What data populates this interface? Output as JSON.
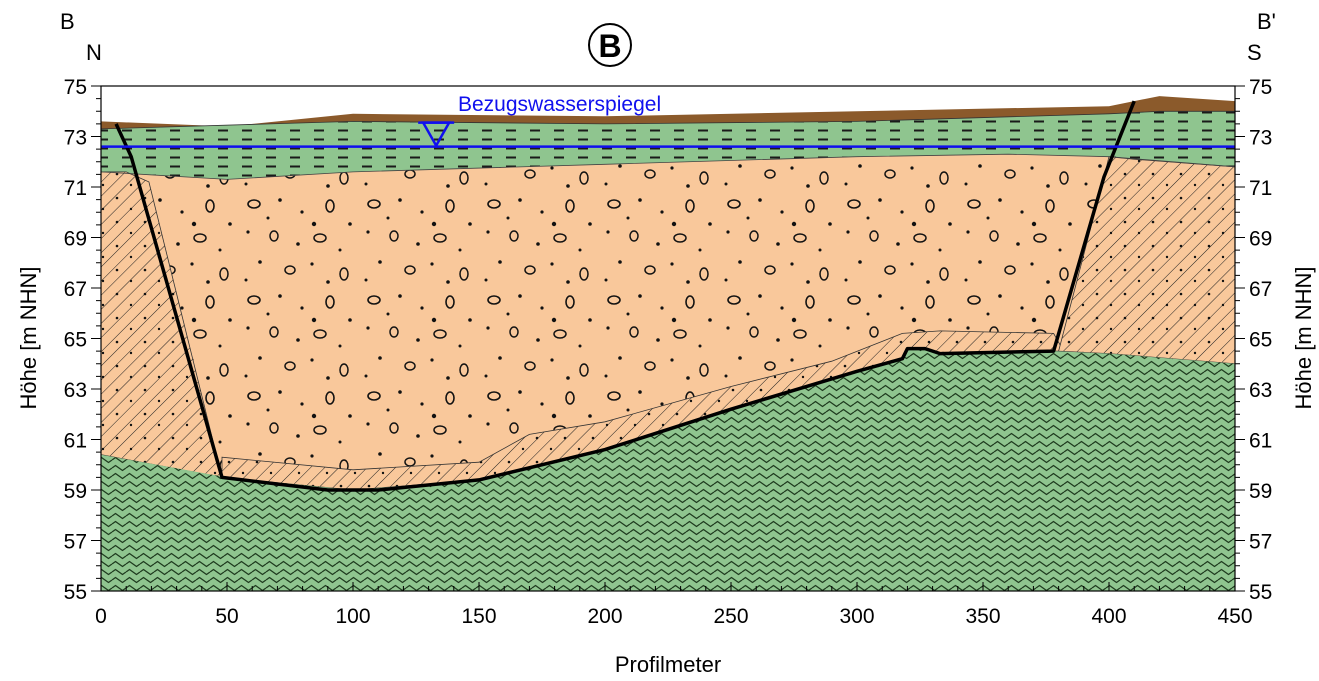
{
  "section_label": "B",
  "corners": {
    "left_top": "B",
    "left_bottom": "N",
    "right_top": "B'",
    "right_bottom": "S"
  },
  "water_level_label": "Bezugswasserspiegel",
  "water_level_m": 72.6,
  "axes": {
    "xlabel": "Profilmeter",
    "ylabel_left": "Höhe [m NHN]",
    "ylabel_right": "Höhe [m NHN]",
    "xlim": [
      0,
      450
    ],
    "ylim": [
      55,
      75
    ],
    "xticks": [
      "0",
      "50",
      "100",
      "150",
      "200",
      "250",
      "300",
      "350",
      "400",
      "450"
    ],
    "yticks": [
      "55",
      "57",
      "59",
      "61",
      "63",
      "65",
      "67",
      "69",
      "71",
      "73",
      "75"
    ]
  },
  "colors": {
    "topsoil": "#8b5a2b",
    "upper_layer": "#8fc58f",
    "gravel": "#f9c89b",
    "bedrock": "#8fc58f",
    "water": "#1010ee"
  },
  "layers": [
    {
      "name": "topsoil",
      "top": [
        [
          0,
          73.6
        ],
        [
          50,
          73.4
        ],
        [
          100,
          73.9
        ],
        [
          200,
          73.8
        ],
        [
          300,
          74.0
        ],
        [
          400,
          74.2
        ],
        [
          420,
          74.6
        ],
        [
          450,
          74.4
        ]
      ]
    },
    {
      "name": "upper_layer",
      "top": [
        [
          0,
          73.3
        ],
        [
          100,
          73.6
        ],
        [
          200,
          73.5
        ],
        [
          300,
          73.6
        ],
        [
          400,
          73.9
        ],
        [
          420,
          74.0
        ],
        [
          450,
          74.0
        ]
      ]
    },
    {
      "name": "gravel",
      "top": [
        [
          0,
          71.6
        ],
        [
          50,
          71.3
        ],
        [
          100,
          71.6
        ],
        [
          200,
          71.9
        ],
        [
          300,
          72.2
        ],
        [
          360,
          72.3
        ],
        [
          400,
          72.2
        ],
        [
          450,
          71.8
        ]
      ]
    },
    {
      "name": "bedrock",
      "top": [
        [
          0,
          60.4
        ],
        [
          50,
          59.5
        ],
        [
          100,
          59.0
        ],
        [
          150,
          59.4
        ],
        [
          200,
          60.6
        ],
        [
          250,
          62.2
        ],
        [
          300,
          63.7
        ],
        [
          318,
          64.2
        ],
        [
          320,
          64.6
        ],
        [
          327,
          64.6
        ],
        [
          333,
          64.4
        ],
        [
          378,
          64.5
        ],
        [
          400,
          64.4
        ],
        [
          450,
          64.0
        ]
      ]
    }
  ],
  "hatched_zones": [
    {
      "points": [
        [
          0,
          71.6
        ],
        [
          10,
          71.6
        ],
        [
          19,
          71.2
        ],
        [
          48,
          59.5
        ],
        [
          0,
          60.4
        ]
      ]
    },
    {
      "points": [
        [
          48,
          59.5
        ],
        [
          48,
          60.3
        ],
        [
          100,
          59.8
        ],
        [
          150,
          60.1
        ],
        [
          170,
          61.2
        ],
        [
          200,
          61.7
        ],
        [
          250,
          63.1
        ],
        [
          290,
          64.1
        ],
        [
          318,
          65.2
        ],
        [
          333,
          65.3
        ],
        [
          378,
          65.2
        ],
        [
          382,
          64.5
        ],
        [
          378,
          64.5
        ],
        [
          333,
          64.4
        ],
        [
          327,
          64.6
        ],
        [
          320,
          64.6
        ],
        [
          318,
          64.2
        ],
        [
          300,
          63.7
        ],
        [
          250,
          62.2
        ],
        [
          200,
          60.6
        ],
        [
          150,
          59.4
        ],
        [
          100,
          59.0
        ]
      ]
    },
    {
      "points": [
        [
          400,
          72.2
        ],
        [
          410,
          72.1
        ],
        [
          450,
          71.8
        ],
        [
          450,
          64.0
        ],
        [
          400,
          64.4
        ],
        [
          380,
          64.5
        ],
        [
          398,
          71.4
        ]
      ]
    }
  ],
  "trench_line": [
    [
      6,
      73.5
    ],
    [
      12,
      72.2
    ],
    [
      48,
      59.5
    ],
    [
      90,
      59.0
    ],
    [
      110,
      59.0
    ],
    [
      150,
      59.4
    ],
    [
      200,
      60.6
    ],
    [
      250,
      62.2
    ],
    [
      300,
      63.7
    ],
    [
      318,
      64.2
    ],
    [
      320,
      64.6
    ],
    [
      327,
      64.6
    ],
    [
      333,
      64.4
    ],
    [
      378,
      64.5
    ],
    [
      398,
      71.4
    ],
    [
      410,
      74.4
    ]
  ]
}
